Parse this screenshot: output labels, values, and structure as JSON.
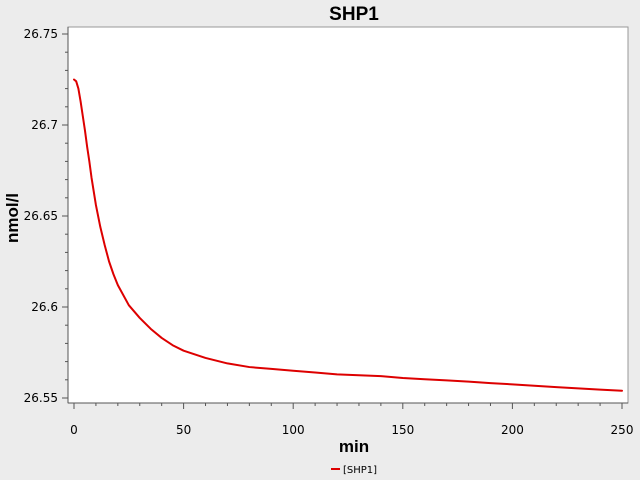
{
  "chart_data": {
    "type": "line",
    "title": "SHP1",
    "xlabel": "min",
    "ylabel": "nmol/l",
    "xlim": [
      0,
      250
    ],
    "ylim": [
      26.55,
      26.75
    ],
    "xticks": [
      0,
      50,
      100,
      150,
      200,
      250
    ],
    "yticks": [
      26.55,
      26.6,
      26.65,
      26.7,
      26.75
    ],
    "ytick_labels": [
      "26.55",
      "26.6",
      "26.65",
      "26.7",
      "26.75"
    ],
    "grid": false,
    "legend_position": "bottom-center",
    "series": [
      {
        "name": "[SHP1]",
        "color": "#dd0000",
        "x": [
          0,
          1,
          2,
          3,
          4,
          5,
          6,
          7,
          8,
          10,
          12,
          14,
          16,
          18,
          20,
          25,
          30,
          35,
          40,
          45,
          50,
          60,
          70,
          80,
          90,
          100,
          110,
          120,
          130,
          140,
          150,
          160,
          170,
          180,
          190,
          200,
          210,
          220,
          230,
          240,
          250
        ],
        "y": [
          26.725,
          26.724,
          26.72,
          26.713,
          26.705,
          26.697,
          26.688,
          26.68,
          26.671,
          26.656,
          26.644,
          26.634,
          26.625,
          26.618,
          26.612,
          26.601,
          26.594,
          26.588,
          26.583,
          26.579,
          26.576,
          26.572,
          26.569,
          26.567,
          26.566,
          26.565,
          26.564,
          26.563,
          26.5625,
          26.562,
          26.561,
          26.5603,
          26.5597,
          26.559,
          26.5582,
          26.5575,
          26.5567,
          26.556,
          26.5553,
          26.5546,
          26.554
        ]
      }
    ]
  }
}
